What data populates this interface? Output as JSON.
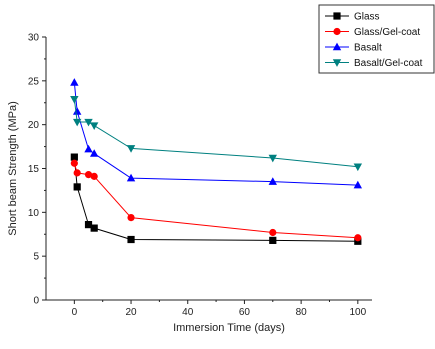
{
  "chart_data": {
    "type": "line",
    "xlabel": "Immersion Time (days)",
    "ylabel": "Short beam Strength (MPa)",
    "xlim": [
      -10,
      105
    ],
    "ylim": [
      0,
      30
    ],
    "xticks": [
      0,
      20,
      40,
      60,
      80,
      100
    ],
    "yticks": [
      0,
      5,
      10,
      15,
      20,
      25,
      30
    ],
    "grid": false,
    "legend_position": "top-right",
    "series": [
      {
        "name": "Glass",
        "color": "#000000",
        "marker": "square",
        "x": [
          0,
          1,
          5,
          7,
          20,
          70,
          100
        ],
        "y": [
          16.3,
          12.9,
          8.6,
          8.2,
          6.9,
          6.8,
          6.7
        ]
      },
      {
        "name": "Glass/Gel-coat",
        "color": "#ff0000",
        "marker": "circle",
        "x": [
          0,
          1,
          5,
          7,
          20,
          70,
          100
        ],
        "y": [
          15.6,
          14.5,
          14.3,
          14.1,
          9.4,
          7.7,
          7.1
        ]
      },
      {
        "name": "Basalt",
        "color": "#0000ff",
        "marker": "triangle-up",
        "x": [
          0,
          1,
          5,
          7,
          20,
          70,
          100
        ],
        "y": [
          24.8,
          21.5,
          17.2,
          16.7,
          13.9,
          13.5,
          13.1
        ]
      },
      {
        "name": "Basalt/Gel-coat",
        "color": "#008080",
        "marker": "triangle-down",
        "x": [
          0,
          1,
          5,
          7,
          20,
          70,
          100
        ],
        "y": [
          22.9,
          20.3,
          20.3,
          19.9,
          17.3,
          16.2,
          15.2
        ]
      }
    ]
  }
}
